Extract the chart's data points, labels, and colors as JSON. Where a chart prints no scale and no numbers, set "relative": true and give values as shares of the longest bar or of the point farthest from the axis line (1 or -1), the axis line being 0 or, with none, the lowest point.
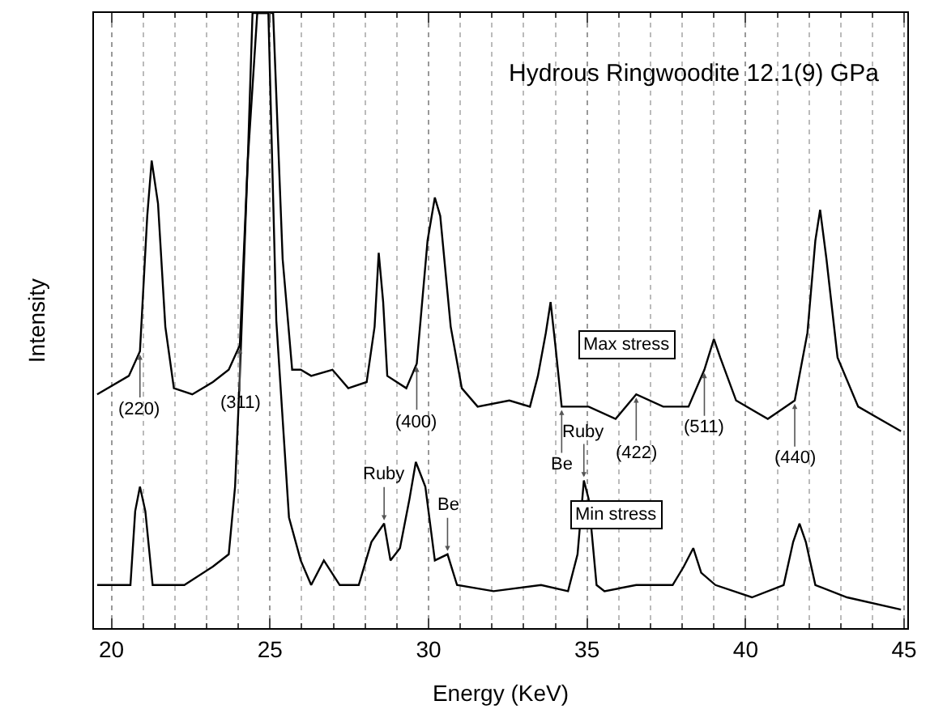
{
  "chart_data": {
    "type": "line",
    "title": "Hydrous Ringwoodite 12.1(9) GPa",
    "xlabel": "Energy (KeV)",
    "ylabel": "Intensity",
    "relative": true,
    "xlim": [
      19.45,
      45.1
    ],
    "xticks": [
      20,
      25,
      30,
      35,
      40,
      45
    ],
    "grid": "x",
    "legend": false,
    "marker": "none",
    "line_style": "solid",
    "series": [
      {
        "name": "Max stress",
        "color": "#000000",
        "x": [
          19.55,
          20.55,
          20.9,
          21.13,
          21.27,
          21.47,
          21.7,
          21.97,
          22.55,
          23.2,
          23.7,
          24.05,
          24.3,
          24.6,
          25.1,
          25.4,
          25.7,
          25.97,
          26.3,
          26.97,
          27.47,
          28.05,
          28.3,
          28.43,
          28.57,
          28.7,
          29.3,
          29.63,
          29.97,
          30.2,
          30.37,
          30.7,
          31.05,
          31.55,
          32.55,
          33.2,
          33.45,
          33.7,
          33.85,
          34.0,
          34.2,
          35.05,
          35.9,
          36.55,
          37.4,
          38.2,
          38.7,
          39.0,
          39.2,
          39.7,
          40.7,
          41.55,
          41.95,
          42.2,
          42.35,
          42.55,
          42.9,
          43.55,
          44.9
        ],
        "values": [
          0.38,
          0.41,
          0.45,
          0.67,
          0.76,
          0.69,
          0.49,
          0.39,
          0.38,
          0.4,
          0.42,
          0.46,
          0.76,
          1.0,
          1.0,
          0.6,
          0.42,
          0.42,
          0.41,
          0.42,
          0.39,
          0.4,
          0.49,
          0.61,
          0.53,
          0.41,
          0.39,
          0.43,
          0.63,
          0.7,
          0.67,
          0.49,
          0.39,
          0.36,
          0.37,
          0.36,
          0.41,
          0.48,
          0.53,
          0.46,
          0.36,
          0.36,
          0.34,
          0.38,
          0.36,
          0.36,
          0.42,
          0.47,
          0.44,
          0.37,
          0.34,
          0.37,
          0.48,
          0.63,
          0.68,
          0.6,
          0.44,
          0.36,
          0.32
        ]
      },
      {
        "name": "Min stress",
        "color": "#000000",
        "x": [
          19.55,
          20.6,
          20.75,
          20.9,
          21.07,
          21.3,
          22.3,
          23.2,
          23.7,
          23.9,
          24.05,
          24.3,
          24.45,
          24.95,
          25.2,
          25.6,
          25.97,
          26.3,
          26.7,
          27.2,
          27.8,
          28.2,
          28.6,
          28.8,
          29.1,
          29.4,
          29.6,
          29.9,
          30.2,
          30.6,
          30.9,
          32.05,
          33.55,
          34.4,
          34.7,
          34.9,
          35.05,
          35.3,
          35.55,
          36.55,
          37.7,
          38.05,
          38.35,
          38.6,
          39.05,
          40.2,
          41.2,
          41.5,
          41.7,
          41.9,
          42.2,
          43.2,
          44.9
        ],
        "values": [
          0.07,
          0.07,
          0.19,
          0.23,
          0.19,
          0.07,
          0.07,
          0.1,
          0.12,
          0.23,
          0.41,
          0.76,
          1.0,
          1.0,
          0.5,
          0.18,
          0.11,
          0.07,
          0.11,
          0.07,
          0.07,
          0.14,
          0.17,
          0.11,
          0.13,
          0.21,
          0.27,
          0.23,
          0.11,
          0.12,
          0.07,
          0.06,
          0.07,
          0.06,
          0.12,
          0.24,
          0.21,
          0.07,
          0.06,
          0.07,
          0.07,
          0.1,
          0.13,
          0.09,
          0.07,
          0.05,
          0.07,
          0.14,
          0.17,
          0.14,
          0.07,
          0.05,
          0.03
        ]
      }
    ],
    "annotations": [
      {
        "text": "(220)",
        "x": 20.9,
        "y": 0.45
      },
      {
        "text": "(311)",
        "x": 24.05,
        "y": 0.46
      },
      {
        "text": "(400)",
        "x": 29.63,
        "y": 0.43
      },
      {
        "text": "Be",
        "x": 34.2,
        "y": 0.36
      },
      {
        "text": "Ruby",
        "x": 34.9,
        "y": 0.24
      },
      {
        "text": "(422)",
        "x": 36.55,
        "y": 0.38
      },
      {
        "text": "(511)",
        "x": 38.7,
        "y": 0.42
      },
      {
        "text": "(440)",
        "x": 41.55,
        "y": 0.37
      },
      {
        "text": "Ruby",
        "x": 28.6,
        "y": 0.17
      },
      {
        "text": "Be",
        "x": 30.6,
        "y": 0.12
      }
    ]
  }
}
